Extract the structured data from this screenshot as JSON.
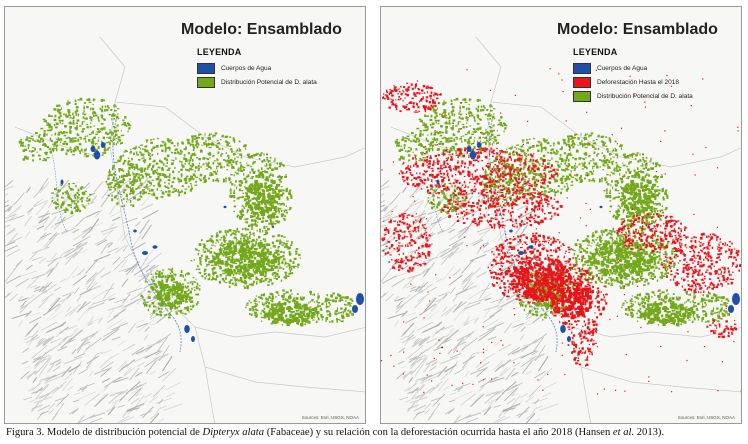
{
  "maps": [
    {
      "title": "Modelo: Ensamblado",
      "legend_heading": "LEYENDA",
      "legend_items": [
        {
          "label": "Cuerpos de Agua",
          "color": "#1f4fa8"
        },
        {
          "label": "Distribución Potencial de D. alata",
          "color": "#74a81c"
        }
      ],
      "sources": "Sources: Esri, USGS, NOAA"
    },
    {
      "title": "Modelo: Ensamblado",
      "legend_heading": "LEYENDA",
      "legend_items": [
        {
          "label": "Cuerpos de Agua",
          "color": "#1f4fa8"
        },
        {
          "label": "Deforestación Hasta el 2018",
          "color": "#e8151b"
        },
        {
          "label": "Distribución Potencial de D. alata",
          "color": "#74a81c"
        }
      ],
      "sources": "Sources: Esri, USGS, NOAA"
    }
  ],
  "caption": {
    "prefix": "Figura 3. Modelo de distribución potencial de ",
    "species": "Dipteryx alata",
    "mid": " (Fabaceae) y su relación con la deforestación ocurrida hasta el año 2018 (Hansen ",
    "etal": "et al.",
    "suffix": " 2013)."
  }
}
